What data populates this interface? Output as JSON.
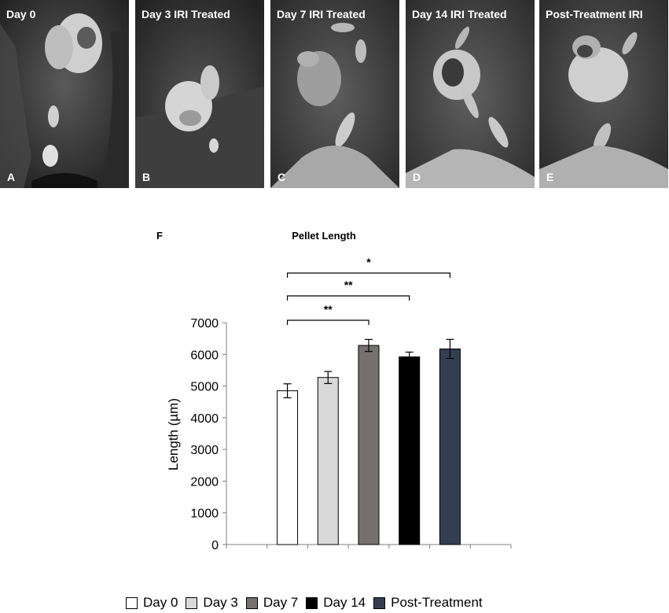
{
  "panels": [
    {
      "title": "Day 0",
      "letter": "A"
    },
    {
      "title": "Day 3 IRI Treated",
      "letter": "B"
    },
    {
      "title": "Day 7 IRI Treated",
      "letter": "C"
    },
    {
      "title": "Day 14 IRI Treated",
      "letter": "D"
    },
    {
      "title": "Post-Treatment IRI",
      "letter": "E"
    }
  ],
  "figure_letter": "F",
  "chart_data": {
    "type": "bar",
    "title": "Pellet Length",
    "ylabel": "Length (µm)",
    "xlabel": "",
    "ylim": [
      0,
      7000
    ],
    "ytick_step": 1000,
    "categories": [
      "Day 0",
      "Day 3",
      "Day 7",
      "Day 14",
      "Post-Treatment"
    ],
    "values": [
      4850,
      5270,
      6280,
      5920,
      6170
    ],
    "errors": [
      220,
      190,
      190,
      150,
      300
    ],
    "colors": [
      "#ffffff",
      "#d9d9d9",
      "#767171",
      "#000000",
      "#333f50"
    ],
    "significance": [
      {
        "from": 0,
        "to": 4,
        "label": "*"
      },
      {
        "from": 0,
        "to": 3,
        "label": "**"
      },
      {
        "from": 0,
        "to": 2,
        "label": "**"
      }
    ],
    "legend_position": "bottom"
  }
}
